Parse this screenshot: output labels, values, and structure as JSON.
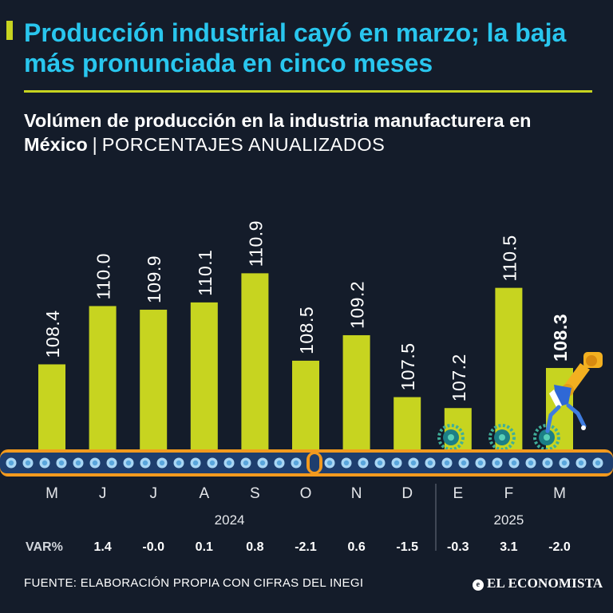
{
  "header": {
    "title": "Producción industrial cayó en marzo; la baja más pronunciada en cinco meses",
    "subtitle_bold": "Volúmen de producción en la industria manufacturera en México",
    "subtitle_sep": "|",
    "subtitle_unit": "PORCENTAJES ANUALIZADOS"
  },
  "colors": {
    "background": "#141c2a",
    "accent": "#c7d420",
    "title": "#29c6ee"
  },
  "chart_data": {
    "type": "bar",
    "title": "Volúmen de producción en la industria manufacturera en México",
    "ylabel": "PORCENTAJES ANUALIZADOS",
    "categories": [
      "M",
      "J",
      "J",
      "A",
      "S",
      "O",
      "N",
      "D",
      "E",
      "F",
      "M"
    ],
    "values": [
      108.4,
      110.0,
      109.9,
      110.1,
      110.9,
      108.5,
      109.2,
      107.5,
      107.2,
      110.5,
      108.3
    ],
    "value_labels": [
      "108.4",
      "110.0",
      "109.9",
      "110.1",
      "110.9",
      "108.5",
      "109.2",
      "107.5",
      "107.2",
      "110.5",
      "108.3"
    ],
    "highlight_index": 10,
    "years": [
      {
        "label": "2024",
        "from": 0,
        "to": 7
      },
      {
        "label": "2025",
        "from": 8,
        "to": 10
      }
    ],
    "var_label": "VAR%",
    "var_values": [
      "1.4",
      "-0.0",
      "0.1",
      "0.8",
      "-2.1",
      "0.6",
      "-1.5",
      "-0.3",
      "3.1",
      "-2.0"
    ],
    "ylim": [
      106.0,
      111.5
    ]
  },
  "footer": {
    "source": "FUENTE: ELABORACIÓN PROPIA CON CIFRAS DEL INEGI",
    "brand": "EL ECONOMISTA"
  }
}
